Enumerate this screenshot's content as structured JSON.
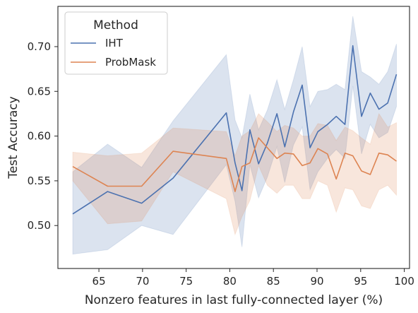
{
  "chart_data": {
    "type": "line",
    "xlabel": "Nonzero features in last fully-connected layer (%)",
    "ylabel": "Test Accuracy",
    "xlim": [
      60.3,
      100.6
    ],
    "ylim": [
      0.452,
      0.745
    ],
    "xticks": [
      65,
      70,
      75,
      80,
      85,
      90,
      95,
      100
    ],
    "yticks": [
      0.5,
      0.55,
      0.6,
      0.65,
      0.7
    ],
    "grid": false,
    "legend": {
      "title": "Method",
      "position": "top-left"
    },
    "series": [
      {
        "name": "IHT",
        "color": "#4c72b0",
        "x": [
          62.0,
          66.0,
          69.9,
          73.5,
          79.6,
          80.6,
          81.4,
          82.3,
          83.3,
          84.3,
          85.4,
          86.3,
          87.3,
          88.3,
          89.2,
          90.1,
          91.2,
          92.2,
          93.2,
          94.1,
          95.1,
          96.1,
          97.1,
          98.1,
          99.1
        ],
        "values": [
          0.513,
          0.538,
          0.525,
          0.553,
          0.626,
          0.57,
          0.539,
          0.607,
          0.569,
          0.592,
          0.625,
          0.588,
          0.627,
          0.657,
          0.587,
          0.605,
          0.613,
          0.622,
          0.613,
          0.701,
          0.622,
          0.648,
          0.63,
          0.637,
          0.669
        ],
        "lower": [
          0.468,
          0.473,
          0.5,
          0.49,
          0.568,
          0.527,
          0.476,
          0.568,
          0.531,
          0.554,
          0.588,
          0.548,
          0.59,
          0.61,
          0.54,
          0.56,
          0.575,
          0.585,
          0.575,
          0.656,
          0.58,
          0.613,
          0.598,
          0.604,
          0.633
        ],
        "upper": [
          0.56,
          0.591,
          0.565,
          0.617,
          0.691,
          0.618,
          0.598,
          0.647,
          0.607,
          0.629,
          0.663,
          0.63,
          0.663,
          0.7,
          0.633,
          0.65,
          0.652,
          0.658,
          0.652,
          0.734,
          0.672,
          0.666,
          0.658,
          0.672,
          0.703
        ]
      },
      {
        "name": "ProbMask",
        "color": "#dd8452",
        "x": [
          62.0,
          66.0,
          69.9,
          73.5,
          79.6,
          80.6,
          81.4,
          82.3,
          83.3,
          84.3,
          85.4,
          86.3,
          87.3,
          88.3,
          89.2,
          90.1,
          91.2,
          92.2,
          93.2,
          94.1,
          95.1,
          96.1,
          97.1,
          98.1,
          99.1
        ],
        "values": [
          0.566,
          0.544,
          0.544,
          0.583,
          0.575,
          0.538,
          0.566,
          0.57,
          0.598,
          0.587,
          0.575,
          0.581,
          0.58,
          0.567,
          0.57,
          0.586,
          0.58,
          0.552,
          0.581,
          0.578,
          0.561,
          0.557,
          0.581,
          0.579,
          0.572
        ],
        "lower": [
          0.55,
          0.502,
          0.505,
          0.56,
          0.53,
          0.49,
          0.51,
          0.528,
          0.567,
          0.545,
          0.536,
          0.545,
          0.545,
          0.53,
          0.53,
          0.55,
          0.545,
          0.515,
          0.542,
          0.54,
          0.522,
          0.519,
          0.54,
          0.545,
          0.534
        ],
        "upper": [
          0.582,
          0.578,
          0.581,
          0.609,
          0.605,
          0.578,
          0.6,
          0.606,
          0.625,
          0.616,
          0.605,
          0.612,
          0.609,
          0.6,
          0.6,
          0.614,
          0.612,
          0.595,
          0.61,
          0.606,
          0.598,
          0.591,
          0.625,
          0.61,
          0.615
        ]
      }
    ]
  }
}
